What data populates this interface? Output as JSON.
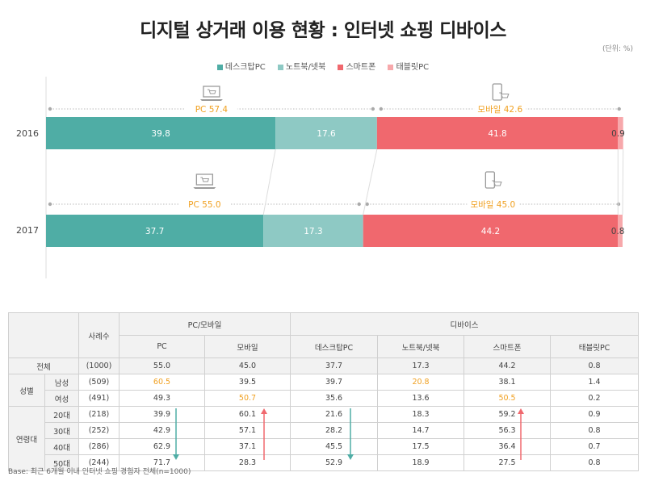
{
  "title": "디지털 상거래 이용 현황 : 인터넷 쇼핑 디바이스",
  "unit": "(단위: %)",
  "colors": {
    "desktop": "#4fada5",
    "notebook": "#8ec9c4",
    "smartphone": "#f0686e",
    "tablet": "#f7a8ab",
    "highlight": "#f0a020"
  },
  "legend": [
    {
      "label": "데스크탑PC",
      "color": "#4fada5"
    },
    {
      "label": "노트북/넷북",
      "color": "#8ec9c4"
    },
    {
      "label": "스마트폰",
      "color": "#f0686e"
    },
    {
      "label": "태블릿PC",
      "color": "#f7a8ab"
    }
  ],
  "chart_data": {
    "type": "bar",
    "orientation": "horizontal-stacked",
    "categories": [
      "2016",
      "2017"
    ],
    "series": [
      {
        "name": "데스크탑PC",
        "values": [
          39.8,
          37.7
        ]
      },
      {
        "name": "노트북/넷북",
        "values": [
          17.6,
          17.3
        ]
      },
      {
        "name": "스마트폰",
        "values": [
          41.8,
          44.2
        ]
      },
      {
        "name": "태블릿PC",
        "values": [
          0.9,
          0.8
        ]
      }
    ],
    "groups": [
      {
        "pc_label": "PC 57.4",
        "mobile_label": "모바일 42.6"
      },
      {
        "pc_label": "PC 55.0",
        "mobile_label": "모바일 45.0"
      }
    ],
    "pc_icon": "laptop-cart-icon",
    "mobile_icon": "phone-cart-icon"
  },
  "table": {
    "header_group": {
      "sample": "사례수",
      "pcmobile": "PC/모바일",
      "device": "디바이스"
    },
    "columns": [
      "PC",
      "모바일",
      "데스크탑PC",
      "노트북/넷북",
      "스마트폰",
      "태블릿PC"
    ],
    "rows": [
      {
        "group": "전체",
        "sub": "",
        "n": "(1000)",
        "values": [
          "55.0",
          "45.0",
          "37.7",
          "17.3",
          "44.2",
          "0.8"
        ],
        "hl": []
      },
      {
        "group": "성별",
        "sub": "남성",
        "n": "(509)",
        "values": [
          "60.5",
          "39.5",
          "39.7",
          "20.8",
          "38.1",
          "1.4"
        ],
        "hl": [
          0,
          3
        ]
      },
      {
        "group": "",
        "sub": "여성",
        "n": "(491)",
        "values": [
          "49.3",
          "50.7",
          "35.6",
          "13.6",
          "50.5",
          "0.2"
        ],
        "hl": [
          1,
          4
        ]
      },
      {
        "group": "연령대",
        "sub": "20대",
        "n": "(218)",
        "values": [
          "39.9",
          "60.1",
          "21.6",
          "18.3",
          "59.2",
          "0.9"
        ],
        "hl": []
      },
      {
        "group": "",
        "sub": "30대",
        "n": "(252)",
        "values": [
          "42.9",
          "57.1",
          "28.2",
          "14.7",
          "56.3",
          "0.8"
        ],
        "hl": []
      },
      {
        "group": "",
        "sub": "40대",
        "n": "(286)",
        "values": [
          "62.9",
          "37.1",
          "45.5",
          "17.5",
          "36.4",
          "0.7"
        ],
        "hl": []
      },
      {
        "group": "",
        "sub": "50대",
        "n": "(244)",
        "values": [
          "71.7",
          "28.3",
          "52.9",
          "18.9",
          "27.5",
          "0.8"
        ],
        "hl": []
      }
    ]
  },
  "footnote": "Base: 최근 6개월 이내 인터넷 쇼핑 경험자 전체(n=1000)"
}
